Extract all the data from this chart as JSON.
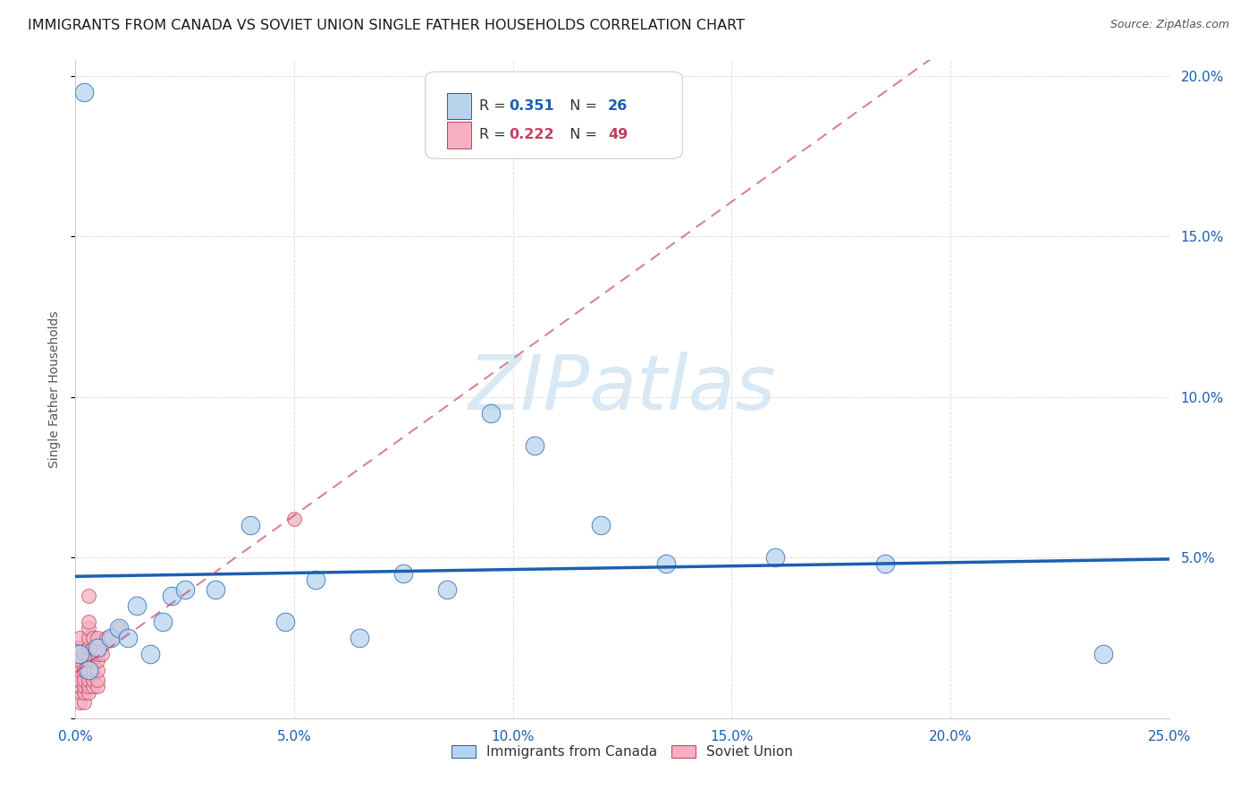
{
  "title": "IMMIGRANTS FROM CANADA VS SOVIET UNION SINGLE FATHER HOUSEHOLDS CORRELATION CHART",
  "source": "Source: ZipAtlas.com",
  "ylabel": "Single Father Households",
  "xlim": [
    0.0,
    0.25
  ],
  "ylim": [
    0.0,
    0.205
  ],
  "canada_r": 0.351,
  "canada_n": 26,
  "soviet_r": 0.222,
  "soviet_n": 49,
  "canada_scatter_color": "#b8d4ed",
  "canada_line_color": "#1a5fb4",
  "soviet_scatter_color": "#f4b0c0",
  "soviet_line_color": "#c04060",
  "watermark_color": "#d8e8f4",
  "grid_color": "#e0e0e0",
  "background_color": "#ffffff",
  "canada_x": [
    0.001,
    0.002,
    0.003,
    0.005,
    0.008,
    0.01,
    0.012,
    0.014,
    0.017,
    0.02,
    0.022,
    0.025,
    0.032,
    0.04,
    0.048,
    0.055,
    0.065,
    0.075,
    0.085,
    0.095,
    0.105,
    0.12,
    0.135,
    0.16,
    0.185,
    0.235
  ],
  "canada_y": [
    0.02,
    0.195,
    0.015,
    0.022,
    0.025,
    0.028,
    0.025,
    0.035,
    0.02,
    0.03,
    0.038,
    0.04,
    0.04,
    0.06,
    0.03,
    0.043,
    0.025,
    0.045,
    0.04,
    0.095,
    0.085,
    0.06,
    0.048,
    0.05,
    0.048,
    0.02
  ],
  "soviet_x": [
    0.0,
    0.0,
    0.0,
    0.0,
    0.0,
    0.001,
    0.001,
    0.001,
    0.001,
    0.001,
    0.001,
    0.001,
    0.001,
    0.002,
    0.002,
    0.002,
    0.002,
    0.002,
    0.002,
    0.003,
    0.003,
    0.003,
    0.003,
    0.003,
    0.003,
    0.003,
    0.003,
    0.003,
    0.003,
    0.003,
    0.004,
    0.004,
    0.004,
    0.004,
    0.004,
    0.004,
    0.004,
    0.005,
    0.005,
    0.005,
    0.005,
    0.005,
    0.005,
    0.005,
    0.006,
    0.007,
    0.008,
    0.01,
    0.05
  ],
  "soviet_y": [
    0.01,
    0.012,
    0.015,
    0.018,
    0.022,
    0.005,
    0.008,
    0.01,
    0.012,
    0.015,
    0.018,
    0.022,
    0.025,
    0.005,
    0.008,
    0.01,
    0.012,
    0.015,
    0.02,
    0.008,
    0.01,
    0.012,
    0.015,
    0.018,
    0.02,
    0.022,
    0.025,
    0.028,
    0.03,
    0.038,
    0.01,
    0.012,
    0.015,
    0.018,
    0.02,
    0.022,
    0.025,
    0.01,
    0.012,
    0.015,
    0.018,
    0.02,
    0.022,
    0.025,
    0.02,
    0.025,
    0.025,
    0.028,
    0.062
  ],
  "title_fontsize": 11.5,
  "axis_label_fontsize": 10,
  "tick_fontsize": 11,
  "legend_fontsize": 11
}
